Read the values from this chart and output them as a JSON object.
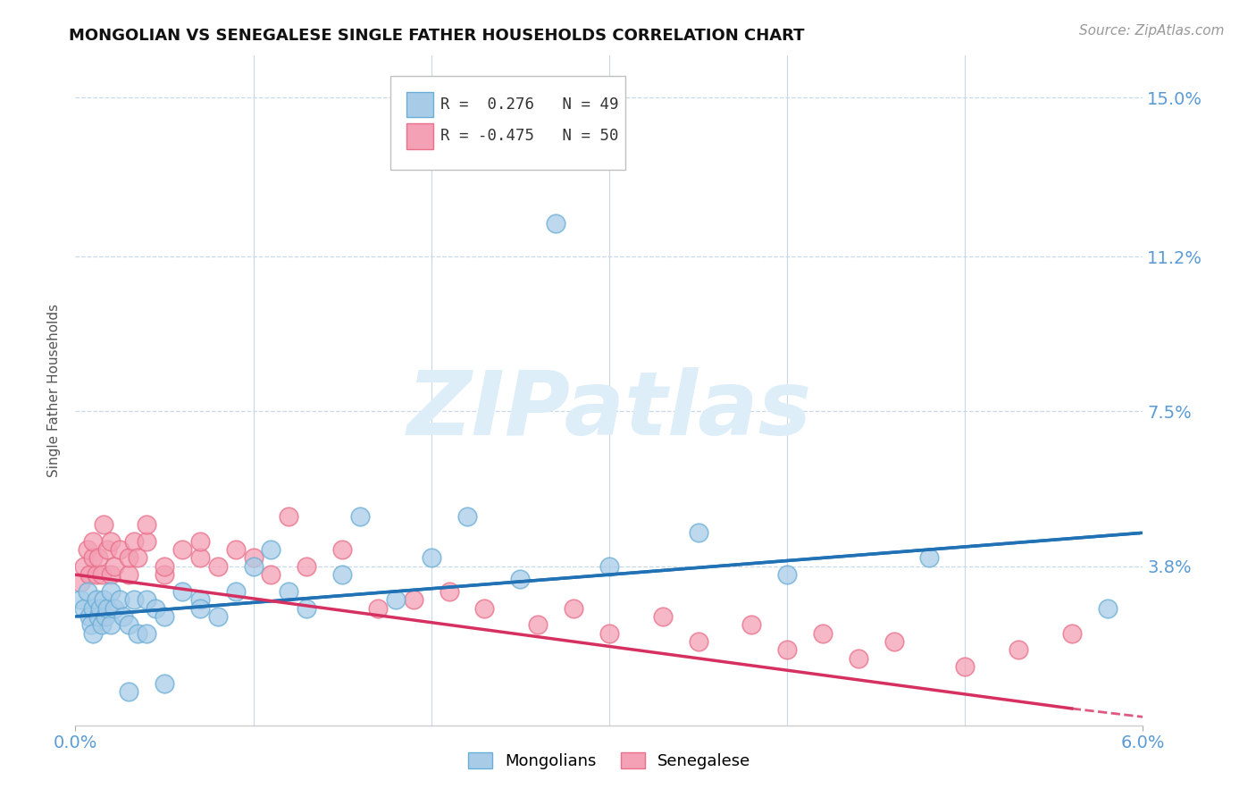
{
  "title": "MONGOLIAN VS SENEGALESE SINGLE FATHER HOUSEHOLDS CORRELATION CHART",
  "source": "Source: ZipAtlas.com",
  "ylabel": "Single Father Households",
  "xlim": [
    0.0,
    0.06
  ],
  "ylim": [
    0.0,
    0.16
  ],
  "yticks": [
    0.038,
    0.075,
    0.112,
    0.15
  ],
  "ytick_labels": [
    "3.8%",
    "7.5%",
    "11.2%",
    "15.0%"
  ],
  "xtick_positions": [
    0.0,
    0.06
  ],
  "xtick_labels": [
    "0.0%",
    "6.0%"
  ],
  "mongolian_R": 0.276,
  "mongolian_N": 49,
  "senegalese_R": -0.475,
  "senegalese_N": 50,
  "mongolian_color": "#a8cce8",
  "senegalese_color": "#f4a0b5",
  "mongolian_edge": "#6aaed6",
  "senegalese_edge": "#e8708a",
  "trend_mongolian": "#2171b5",
  "trend_senegalese": "#d63060",
  "watermark_color": "#ddeef8",
  "axis_color": "#5b9bd5",
  "grid_color": "#c8d8e8",
  "background_color": "#ffffff",
  "mongolian_x": [
    0.0003,
    0.0005,
    0.0007,
    0.0008,
    0.0009,
    0.001,
    0.001,
    0.0012,
    0.0013,
    0.0014,
    0.0015,
    0.0016,
    0.0017,
    0.0018,
    0.002,
    0.002,
    0.0022,
    0.0025,
    0.0027,
    0.003,
    0.003,
    0.0033,
    0.0035,
    0.004,
    0.004,
    0.0045,
    0.005,
    0.005,
    0.006,
    0.007,
    0.007,
    0.008,
    0.009,
    0.01,
    0.011,
    0.012,
    0.013,
    0.015,
    0.016,
    0.018,
    0.02,
    0.022,
    0.025,
    0.027,
    0.03,
    0.035,
    0.04,
    0.048,
    0.058
  ],
  "mongolian_y": [
    0.03,
    0.028,
    0.032,
    0.026,
    0.024,
    0.028,
    0.022,
    0.03,
    0.026,
    0.028,
    0.024,
    0.03,
    0.026,
    0.028,
    0.032,
    0.024,
    0.028,
    0.03,
    0.026,
    0.024,
    0.008,
    0.03,
    0.022,
    0.03,
    0.022,
    0.028,
    0.026,
    0.01,
    0.032,
    0.03,
    0.028,
    0.026,
    0.032,
    0.038,
    0.042,
    0.032,
    0.028,
    0.036,
    0.05,
    0.03,
    0.04,
    0.05,
    0.035,
    0.12,
    0.038,
    0.046,
    0.036,
    0.04,
    0.028
  ],
  "senegalese_x": [
    0.0003,
    0.0005,
    0.0007,
    0.0008,
    0.001,
    0.001,
    0.0012,
    0.0013,
    0.0015,
    0.0016,
    0.0018,
    0.002,
    0.002,
    0.0022,
    0.0025,
    0.003,
    0.003,
    0.0033,
    0.0035,
    0.004,
    0.004,
    0.005,
    0.005,
    0.006,
    0.007,
    0.007,
    0.008,
    0.009,
    0.01,
    0.011,
    0.012,
    0.013,
    0.015,
    0.017,
    0.019,
    0.021,
    0.023,
    0.026,
    0.028,
    0.03,
    0.033,
    0.035,
    0.038,
    0.04,
    0.042,
    0.044,
    0.046,
    0.05,
    0.053,
    0.056
  ],
  "senegalese_y": [
    0.034,
    0.038,
    0.042,
    0.036,
    0.04,
    0.044,
    0.036,
    0.04,
    0.036,
    0.048,
    0.042,
    0.036,
    0.044,
    0.038,
    0.042,
    0.036,
    0.04,
    0.044,
    0.04,
    0.044,
    0.048,
    0.036,
    0.038,
    0.042,
    0.04,
    0.044,
    0.038,
    0.042,
    0.04,
    0.036,
    0.05,
    0.038,
    0.042,
    0.028,
    0.03,
    0.032,
    0.028,
    0.024,
    0.028,
    0.022,
    0.026,
    0.02,
    0.024,
    0.018,
    0.022,
    0.016,
    0.02,
    0.014,
    0.018,
    0.022
  ],
  "mongolian_trend_x0": 0.0,
  "mongolian_trend_x1": 0.06,
  "mongolian_trend_y0": 0.026,
  "mongolian_trend_y1": 0.046,
  "senegalese_trend_x0": 0.0,
  "senegalese_trend_x1": 0.056,
  "senegalese_trend_x_dash": 0.056,
  "senegalese_trend_x_end": 0.06,
  "senegalese_trend_y0": 0.036,
  "senegalese_trend_y1": 0.004,
  "senegalese_trend_y_end": 0.002
}
